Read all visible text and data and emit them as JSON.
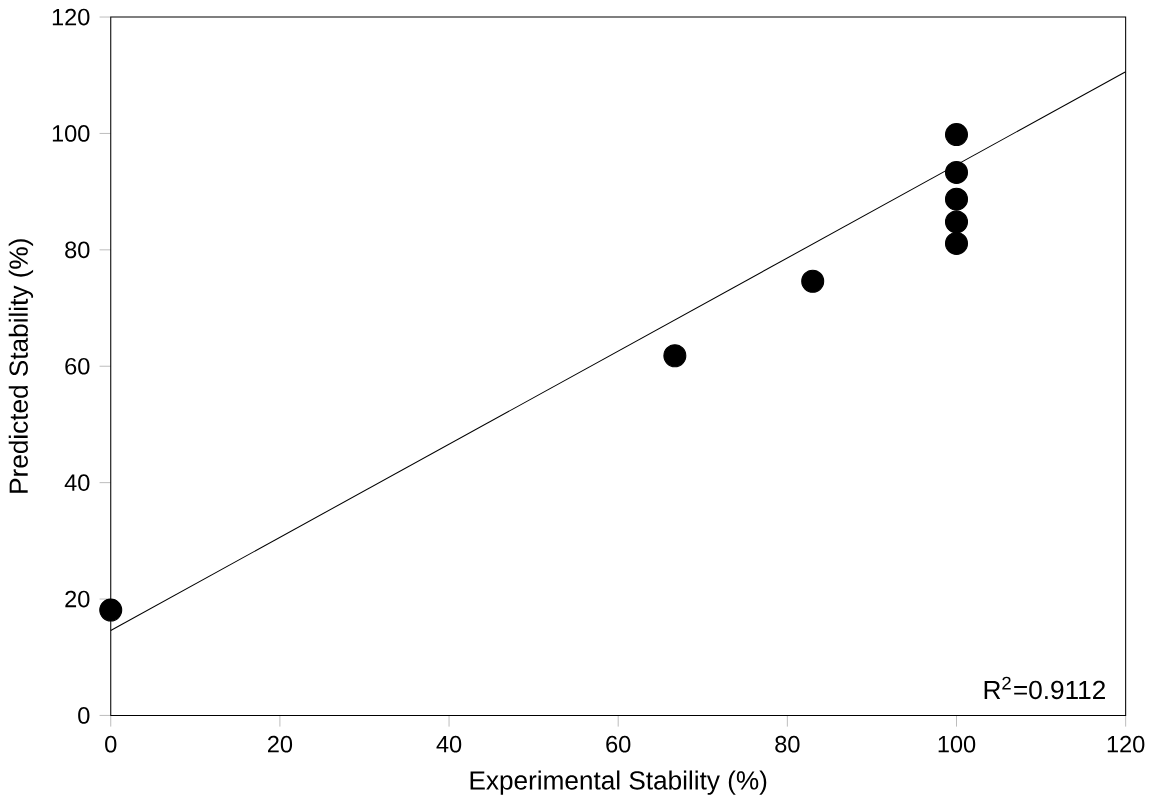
{
  "chart_data": {
    "type": "scatter",
    "xlabel": "Experimental Stability (%)",
    "ylabel": "Predicted Stability (%)",
    "xlim": [
      0,
      120
    ],
    "ylim": [
      0,
      120
    ],
    "xticks": [
      0,
      20,
      40,
      60,
      80,
      100,
      120
    ],
    "yticks": [
      0,
      20,
      40,
      60,
      80,
      100,
      120
    ],
    "series": [
      {
        "color": "#000000",
        "marker": "circle",
        "x": [
          0,
          66.7,
          83,
          100,
          100,
          100,
          100,
          100
        ],
        "values": [
          18.1,
          61.8,
          74.6,
          99.8,
          93.3,
          88.7,
          84.8,
          81.1
        ]
      },
      {
        "type": "line",
        "color": "#000000",
        "marker": "none",
        "line_style": "solid",
        "x": [
          0,
          120
        ],
        "values": [
          14.6,
          110.6
        ]
      }
    ],
    "annotations": [
      "R$^{2}$=0.9112"
    ]
  }
}
